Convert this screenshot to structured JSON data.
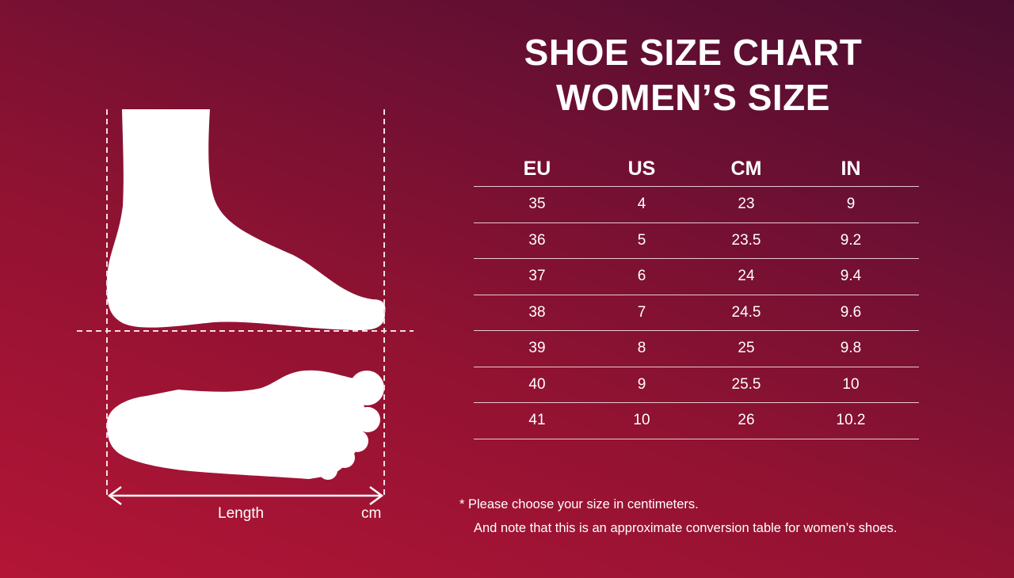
{
  "title": {
    "line1": "SHOE SIZE CHART",
    "line2": "WOMEN’S SIZE"
  },
  "table": {
    "headers": [
      "EU",
      "US",
      "CM",
      "IN"
    ],
    "rows": [
      [
        "35",
        "4",
        "23",
        "9"
      ],
      [
        "36",
        "5",
        "23.5",
        "9.2"
      ],
      [
        "37",
        "6",
        "24",
        "9.4"
      ],
      [
        "38",
        "7",
        "24.5",
        "9.6"
      ],
      [
        "39",
        "8",
        "25",
        "9.8"
      ],
      [
        "40",
        "9",
        "25.5",
        "10"
      ],
      [
        "41",
        "10",
        "26",
        "10.2"
      ]
    ]
  },
  "diagram": {
    "length_label": "Length",
    "unit_label": "cm"
  },
  "notes": {
    "line1": "*  Please choose your size in centimeters.",
    "line2": "And note that this is an approximate conversion table for women’s shoes."
  },
  "colors": {
    "background_light": "#b31536",
    "background_dark": "#4a0d30",
    "foreground": "#ffffff"
  }
}
